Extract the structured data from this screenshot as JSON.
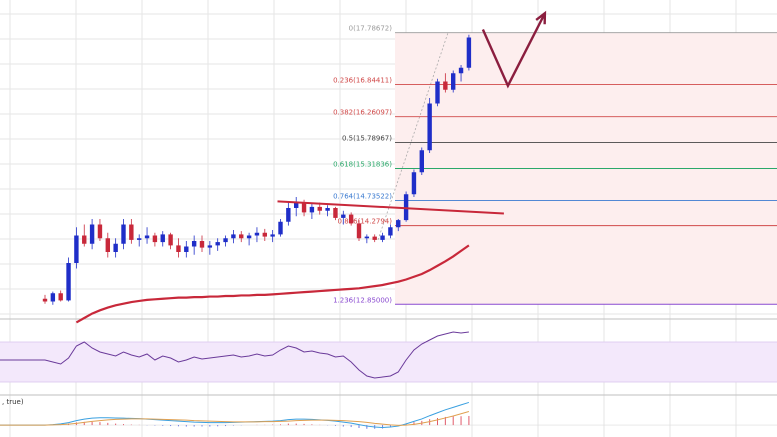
{
  "chart_data": {
    "type": "candlestick",
    "price_range": [
      12.6,
      18.2
    ],
    "colors": {
      "bull": "#1f2ec8",
      "bear": "#c8283a",
      "ma": "#c8283a",
      "trendline": "#c8283a",
      "arrow": "#8b1e3f",
      "rsi": "#6a3a9a",
      "macd": "#3aa0e0",
      "signal": "#e0a050",
      "grid": "#e6e6e6",
      "fib_zone": "#fdeeee",
      "rsi_zone": "#f3e8fb"
    },
    "candles": [
      [
        12.95,
        13.02,
        12.86,
        12.9
      ],
      [
        12.9,
        13.08,
        12.84,
        13.05
      ],
      [
        13.05,
        13.1,
        12.9,
        12.92
      ],
      [
        12.92,
        13.7,
        12.9,
        13.6
      ],
      [
        13.6,
        14.25,
        13.5,
        14.1
      ],
      [
        14.1,
        14.3,
        13.9,
        13.95
      ],
      [
        13.95,
        14.4,
        13.85,
        14.3
      ],
      [
        14.3,
        14.4,
        14.0,
        14.05
      ],
      [
        14.05,
        14.15,
        13.7,
        13.8
      ],
      [
        13.8,
        14.05,
        13.7,
        13.95
      ],
      [
        13.95,
        14.4,
        13.85,
        14.3
      ],
      [
        14.3,
        14.4,
        13.95,
        14.02
      ],
      [
        14.02,
        14.12,
        13.9,
        14.05
      ],
      [
        14.05,
        14.25,
        13.95,
        14.1
      ],
      [
        14.1,
        14.15,
        13.9,
        13.98
      ],
      [
        13.98,
        14.18,
        13.9,
        14.12
      ],
      [
        14.12,
        14.15,
        13.85,
        13.92
      ],
      [
        13.92,
        14.05,
        13.7,
        13.8
      ],
      [
        13.8,
        14.0,
        13.7,
        13.9
      ],
      [
        13.9,
        14.1,
        13.75,
        14.0
      ],
      [
        14.0,
        14.1,
        13.8,
        13.88
      ],
      [
        13.88,
        14.0,
        13.75,
        13.92
      ],
      [
        13.92,
        14.05,
        13.82,
        13.98
      ],
      [
        13.98,
        14.1,
        13.9,
        14.05
      ],
      [
        14.05,
        14.2,
        13.96,
        14.12
      ],
      [
        14.12,
        14.18,
        13.98,
        14.05
      ],
      [
        14.05,
        14.15,
        13.92,
        14.1
      ],
      [
        14.1,
        14.25,
        13.98,
        14.15
      ],
      [
        14.15,
        14.22,
        14.0,
        14.08
      ],
      [
        14.08,
        14.2,
        13.98,
        14.12
      ],
      [
        14.12,
        14.4,
        14.08,
        14.35
      ],
      [
        14.35,
        14.7,
        14.28,
        14.6
      ],
      [
        14.6,
        14.8,
        14.45,
        14.7
      ],
      [
        14.7,
        14.75,
        14.45,
        14.52
      ],
      [
        14.52,
        14.68,
        14.4,
        14.62
      ],
      [
        14.62,
        14.7,
        14.48,
        14.55
      ],
      [
        14.55,
        14.65,
        14.45,
        14.6
      ],
      [
        14.6,
        14.62,
        14.38,
        14.42
      ],
      [
        14.42,
        14.55,
        14.3,
        14.48
      ],
      [
        14.48,
        14.52,
        14.28,
        14.32
      ],
      [
        14.32,
        14.38,
        14.0,
        14.05
      ],
      [
        14.05,
        14.12,
        13.96,
        14.08
      ],
      [
        14.08,
        14.12,
        13.98,
        14.02
      ],
      [
        14.02,
        14.15,
        13.98,
        14.1
      ],
      [
        14.1,
        14.3,
        14.05,
        14.25
      ],
      [
        14.25,
        14.4,
        14.18,
        14.38
      ],
      [
        14.38,
        14.9,
        14.35,
        14.85
      ],
      [
        14.85,
        15.3,
        14.8,
        15.25
      ],
      [
        15.25,
        15.7,
        15.2,
        15.65
      ],
      [
        15.65,
        16.6,
        15.6,
        16.5
      ],
      [
        16.5,
        16.95,
        16.45,
        16.9
      ],
      [
        16.9,
        17.05,
        16.7,
        16.75
      ],
      [
        16.75,
        17.1,
        16.7,
        17.05
      ],
      [
        17.05,
        17.2,
        16.9,
        17.15
      ],
      [
        17.15,
        17.75,
        17.1,
        17.7
      ]
    ],
    "moving_average": [
      12.52,
      12.6,
      12.68,
      12.74,
      12.79,
      12.83,
      12.86,
      12.89,
      12.91,
      12.93,
      12.94,
      12.95,
      12.96,
      12.97,
      12.97,
      12.98,
      12.98,
      12.99,
      12.99,
      13.0,
      13.0,
      13.01,
      13.01,
      13.02,
      13.02,
      13.03,
      13.04,
      13.05,
      13.06,
      13.07,
      13.08,
      13.09,
      13.1,
      13.11,
      13.12,
      13.13,
      13.14,
      13.16,
      13.18,
      13.2,
      13.23,
      13.26,
      13.3,
      13.35,
      13.4,
      13.47,
      13.55,
      13.63,
      13.72,
      13.82,
      13.92
    ],
    "ma_start_index": 4,
    "trendline": [
      [
        30,
        14.72
      ],
      [
        54,
        14.5
      ]
    ],
    "fibonacci": [
      {
        "label": "0(17.78672)",
        "price": 17.78672,
        "color": "#9a9a9a"
      },
      {
        "label": "0.236(16.84411)",
        "price": 16.84411,
        "color": "#d04848"
      },
      {
        "label": "0.382(16.26097)",
        "price": 16.26097,
        "color": "#d04848"
      },
      {
        "label": "0.5(15.78967)",
        "price": 15.78967,
        "color": "#444444"
      },
      {
        "label": "0.618(15.31836)",
        "price": 15.31836,
        "color": "#2aa86a"
      },
      {
        "label": "0.764(14.73522)",
        "price": 14.73522,
        "color": "#3a7ad0"
      },
      {
        "label": "0.886(14.2794)",
        "price": 14.2794,
        "color": "#d04848"
      },
      {
        "label": "1.236(12.85000)",
        "price": 12.85,
        "color": "#8a4ad0"
      }
    ],
    "rsi": [
      52,
      50,
      48,
      54,
      66,
      70,
      64,
      60,
      58,
      56,
      60,
      57,
      55,
      58,
      52,
      56,
      54,
      50,
      52,
      55,
      53,
      54,
      55,
      56,
      57,
      55,
      56,
      58,
      56,
      57,
      62,
      66,
      64,
      60,
      61,
      59,
      58,
      55,
      56,
      50,
      42,
      36,
      34,
      35,
      36,
      40,
      52,
      62,
      68,
      72,
      76,
      78,
      80,
      79,
      80
    ],
    "macd": [
      0.0,
      0.02,
      0.05,
      0.1,
      0.18,
      0.24,
      0.28,
      0.3,
      0.3,
      0.29,
      0.28,
      0.27,
      0.26,
      0.24,
      0.22,
      0.2,
      0.18,
      0.16,
      0.14,
      0.12,
      0.11,
      0.1,
      0.1,
      0.1,
      0.11,
      0.12,
      0.13,
      0.14,
      0.15,
      0.16,
      0.18,
      0.22,
      0.24,
      0.24,
      0.23,
      0.21,
      0.19,
      0.16,
      0.12,
      0.08,
      0.02,
      -0.04,
      -0.08,
      -0.1,
      -0.08,
      -0.04,
      0.05,
      0.15,
      0.25,
      0.38,
      0.5,
      0.62,
      0.72,
      0.82,
      0.92
    ],
    "signal": [
      0.0,
      0.01,
      0.02,
      0.04,
      0.07,
      0.11,
      0.15,
      0.18,
      0.21,
      0.23,
      0.24,
      0.25,
      0.25,
      0.25,
      0.24,
      0.23,
      0.22,
      0.21,
      0.2,
      0.18,
      0.17,
      0.16,
      0.15,
      0.14,
      0.13,
      0.13,
      0.13,
      0.13,
      0.14,
      0.14,
      0.15,
      0.16,
      0.18,
      0.19,
      0.2,
      0.2,
      0.2,
      0.19,
      0.18,
      0.16,
      0.14,
      0.11,
      0.07,
      0.04,
      0.01,
      -0.01,
      0.0,
      0.03,
      0.08,
      0.14,
      0.21,
      0.29,
      0.37,
      0.46,
      0.55
    ],
    "arrow_path": [
      [
        17.7,
        "start"
      ],
      [
        16.75,
        "dip"
      ],
      [
        18.05,
        "up"
      ]
    ],
    "macd_label": ", true)"
  }
}
